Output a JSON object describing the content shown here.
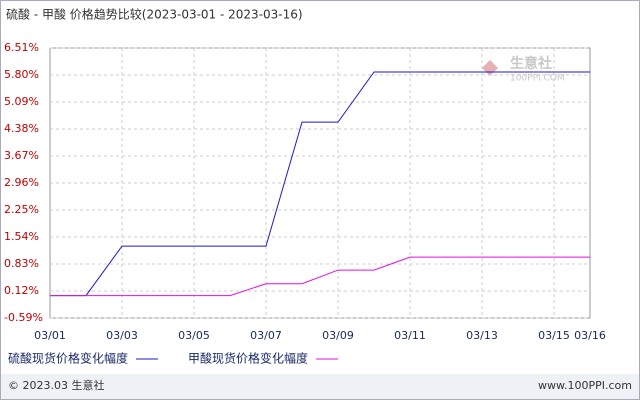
{
  "chart_data": {
    "type": "line",
    "title": "硫酸 - 甲酸 价格趋势比较(2023-03-01 - 2023-03-16)",
    "x": [
      "03/01",
      null,
      "03/03",
      null,
      "03/05",
      null,
      "03/07",
      null,
      "03/09",
      null,
      "03/11",
      null,
      "03/13",
      null,
      "03/15",
      "03/16"
    ],
    "series": [
      {
        "name": "硫酸现货价格变化幅度",
        "color": "#1a1acc",
        "values": [
          0,
          0,
          1.3,
          1.3,
          1.3,
          1.3,
          1.3,
          4.56,
          4.56,
          5.88,
          5.88,
          5.88,
          5.88,
          5.88,
          5.88,
          5.88
        ]
      },
      {
        "name": "甲酸现货价格变化幅度",
        "color": "#e010e0",
        "values": [
          0,
          0,
          0,
          0,
          0,
          0,
          0.31,
          0.31,
          0.67,
          0.67,
          1.01,
          1.01,
          1.01,
          1.01,
          1.01,
          1.01
        ]
      }
    ],
    "ylim": [
      -0.59,
      6.51
    ],
    "yticks": [
      {
        "value": 6.51,
        "label": "6.51%"
      },
      {
        "value": 5.8,
        "label": "5.80%"
      },
      {
        "value": 5.09,
        "label": "5.09%"
      },
      {
        "value": 4.38,
        "label": "4.38%"
      },
      {
        "value": 3.67,
        "label": "3.67%"
      },
      {
        "value": 2.96,
        "label": "2.96%"
      },
      {
        "value": 2.25,
        "label": "2.25%"
      },
      {
        "value": 1.54,
        "label": "1.54%"
      },
      {
        "value": 0.83,
        "label": "0.83%"
      },
      {
        "value": 0.12,
        "label": "0.12%"
      },
      {
        "value": -0.59,
        "label": "-0.59%"
      }
    ],
    "grid": true,
    "watermark": {
      "name": "生意社",
      "site": "100PPI.COM"
    },
    "footer_left": "© 2023.03 生意社",
    "footer_right": "www.100PPI.com"
  }
}
